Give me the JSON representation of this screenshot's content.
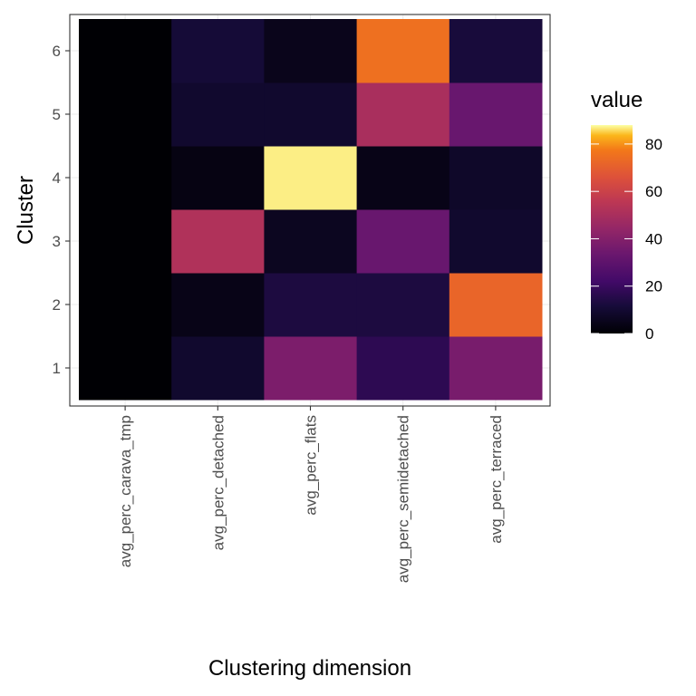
{
  "chart_data": {
    "type": "heatmap",
    "xlabel": "Clustering dimension",
    "ylabel": "Cluster",
    "x": [
      "avg_perc_carava_tmp",
      "avg_perc_detached",
      "avg_perc_flats",
      "avg_perc_semidetached",
      "avg_perc_terraced"
    ],
    "y": [
      "1",
      "2",
      "3",
      "4",
      "5",
      "6"
    ],
    "values": [
      [
        0,
        9,
        38,
        17,
        37
      ],
      [
        0,
        4,
        13,
        13,
        72
      ],
      [
        0,
        52,
        6,
        33,
        9
      ],
      [
        0,
        3,
        87,
        4,
        8
      ],
      [
        0,
        9,
        9,
        50,
        33
      ],
      [
        0,
        11,
        5,
        75,
        12
      ]
    ],
    "colorscale": "inferno",
    "zlim": [
      0,
      88
    ],
    "legend": {
      "title": "value",
      "ticks": [
        0,
        20,
        40,
        60,
        80
      ],
      "position": "right"
    },
    "grid": true
  }
}
